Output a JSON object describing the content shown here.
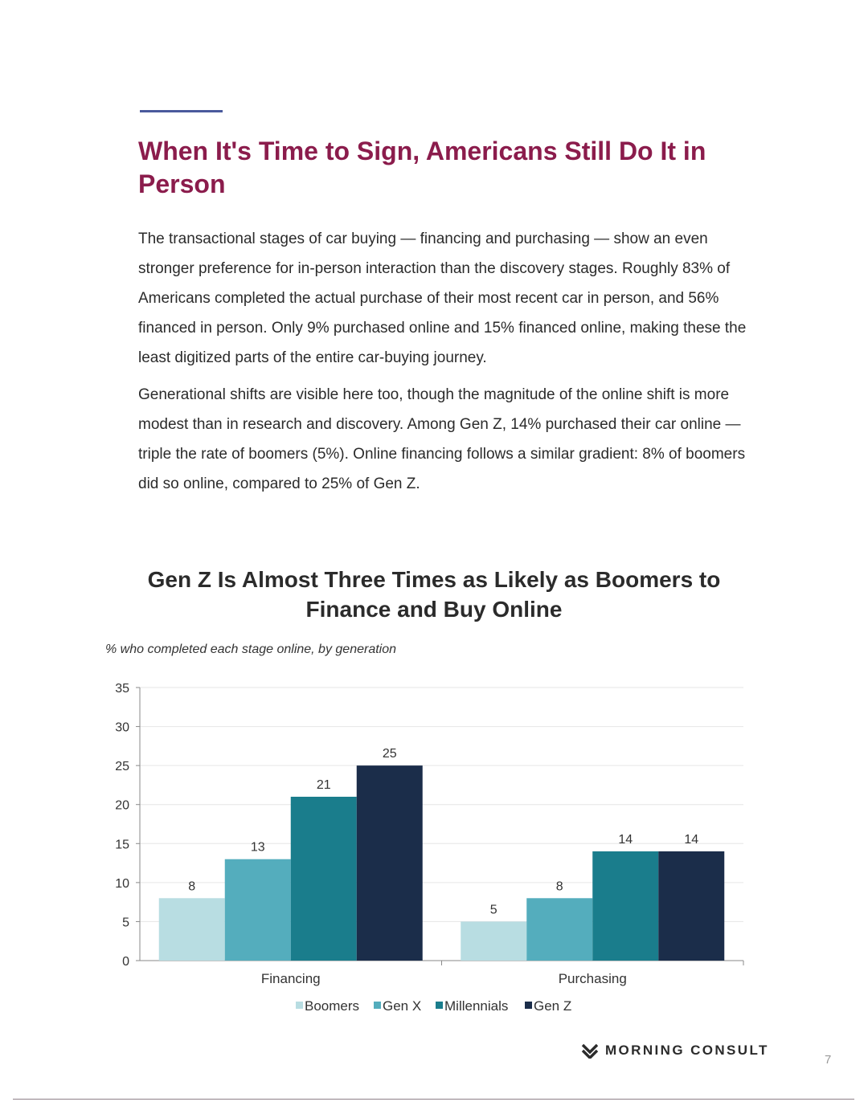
{
  "page": {
    "title": "When It's Time to Sign, Americans Still Do It in Person",
    "paragraphs": [
      "The transactional stages of car buying — financing and purchasing — show an even stronger preference for in-person interaction than the discovery stages. Roughly 83% of Americans completed the actual purchase of their most recent car in person, and 56% financed in person. Only 9% purchased online and 15% financed online, making these the least digitized parts of the entire car-buying journey.",
      "Generational shifts are visible here too, though the magnitude of the online shift is more modest than in research and discovery. Among Gen Z, 14% purchased their car online — triple the rate of boomers (5%). Online financing follows a similar gradient: 8% of boomers did so online, compared to 25% of Gen Z."
    ],
    "page_number": "7",
    "brand": "MORNING CONSULT",
    "colors": {
      "title": "#8b1c4c",
      "accent_rule": "#4a5a9c"
    }
  },
  "chart_data": {
    "type": "bar",
    "title": "Gen Z Is Almost Three Times as Likely as Boomers to Finance and Buy Online",
    "subtitle": "% who completed each stage online, by generation",
    "categories": [
      "Financing",
      "Purchasing"
    ],
    "series": [
      {
        "name": "Boomers",
        "color": "#b8dde2",
        "values": [
          8,
          5
        ]
      },
      {
        "name": "Gen X",
        "color": "#54adbd",
        "values": [
          13,
          8
        ]
      },
      {
        "name": "Millennials",
        "color": "#1a7d8c",
        "values": [
          21,
          14
        ]
      },
      {
        "name": "Gen Z",
        "color": "#1b2d4a",
        "values": [
          25,
          14
        ]
      }
    ],
    "data_labels": [
      [
        "8",
        "5"
      ],
      [
        "13",
        "8"
      ],
      [
        "21",
        "14"
      ],
      [
        "25",
        "14"
      ]
    ],
    "ylim": [
      0,
      35
    ],
    "yticks": [
      0,
      5,
      10,
      15,
      20,
      25,
      30,
      35
    ],
    "grid": true,
    "legend": "bottom"
  }
}
